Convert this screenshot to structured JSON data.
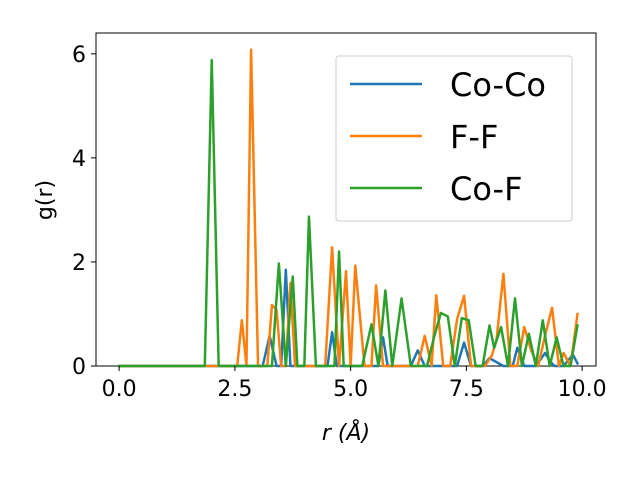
{
  "chart_data": {
    "type": "line",
    "xlabel": "r (Å)",
    "ylabel": "g(r)",
    "xlim": [
      -0.5,
      10.3
    ],
    "ylim": [
      0,
      6.4
    ],
    "xticks": [
      0.0,
      2.5,
      5.0,
      7.5,
      10.0
    ],
    "yticks": [
      0,
      2,
      4,
      6
    ],
    "xtick_labels": [
      "0.0",
      "2.5",
      "5.0",
      "7.5",
      "10.0"
    ],
    "ytick_labels": [
      "0",
      "2",
      "4",
      "6"
    ],
    "grid": false,
    "legend_position": "top-right",
    "series": [
      {
        "name": "Co-Co",
        "color": "#1f77b4",
        "x": [
          0.0,
          3.1,
          3.25,
          3.4,
          3.5,
          3.6,
          3.7,
          4.5,
          4.6,
          4.7,
          5.0,
          5.6,
          5.7,
          5.8,
          6.3,
          6.45,
          6.6,
          7.1,
          7.3,
          7.45,
          7.6,
          7.85,
          8.0,
          8.3,
          8.5,
          8.6,
          8.75,
          9.0,
          9.2,
          9.3,
          9.4,
          9.6,
          9.8,
          9.9
        ],
        "y": [
          0,
          0,
          0.58,
          0.0,
          0.0,
          1.85,
          0.0,
          0.0,
          0.65,
          0.0,
          0.0,
          0.0,
          0.55,
          0.0,
          0.0,
          0.3,
          0.0,
          0.0,
          0.0,
          0.45,
          0.0,
          0.0,
          0.15,
          0.0,
          0.0,
          0.35,
          0.0,
          0.0,
          0.25,
          0.1,
          0.0,
          0.0,
          0.22,
          0.05
        ]
      },
      {
        "name": "F-F",
        "color": "#ff7f0e",
        "x": [
          0.0,
          2.55,
          2.65,
          2.75,
          2.85,
          3.0,
          3.2,
          3.3,
          3.4,
          3.5,
          3.6,
          3.7,
          3.8,
          3.9,
          4.0,
          4.1,
          4.3,
          4.45,
          4.6,
          4.75,
          4.9,
          5.0,
          5.1,
          5.3,
          5.45,
          5.55,
          5.7,
          5.85,
          6.1,
          6.3,
          6.45,
          6.6,
          6.75,
          6.85,
          7.0,
          7.15,
          7.3,
          7.45,
          7.6,
          7.8,
          7.9,
          8.05,
          8.15,
          8.3,
          8.45,
          8.6,
          8.75,
          8.9,
          9.05,
          9.2,
          9.35,
          9.5,
          9.6,
          9.75,
          9.9
        ],
        "y": [
          0,
          0,
          0.88,
          0.0,
          6.08,
          0.0,
          0.0,
          1.17,
          1.08,
          0.0,
          0.0,
          1.6,
          0.0,
          0.0,
          0.0,
          0.0,
          0.0,
          0.0,
          2.28,
          0.0,
          1.82,
          0.0,
          1.93,
          0.0,
          0.0,
          1.55,
          0.0,
          0.0,
          0.0,
          0.0,
          0.0,
          0.58,
          0.0,
          1.36,
          0.0,
          0.0,
          0.9,
          1.35,
          0.0,
          0.0,
          0.0,
          0.2,
          0.5,
          1.77,
          0.0,
          0.0,
          0.75,
          0.3,
          0.0,
          0.58,
          1.12,
          0.0,
          0.25,
          0.0,
          1.0
        ]
      },
      {
        "name": "Co-F",
        "color": "#2ca02c",
        "x": [
          0.0,
          1.85,
          2.0,
          2.15,
          3.3,
          3.45,
          3.6,
          3.75,
          3.85,
          4.0,
          4.1,
          4.25,
          4.5,
          4.65,
          4.75,
          4.85,
          5.0,
          5.25,
          5.45,
          5.6,
          5.75,
          5.9,
          6.1,
          6.3,
          6.5,
          6.65,
          6.8,
          6.95,
          7.1,
          7.25,
          7.4,
          7.55,
          7.7,
          7.85,
          8.0,
          8.1,
          8.25,
          8.4,
          8.55,
          8.7,
          8.85,
          9.0,
          9.15,
          9.3,
          9.45,
          9.6,
          9.75,
          9.9
        ],
        "y": [
          0,
          0,
          5.88,
          0.0,
          0.0,
          1.97,
          0.0,
          1.72,
          0.0,
          0.0,
          2.87,
          0.0,
          0.0,
          0.0,
          2.2,
          0.0,
          0.0,
          0.0,
          0.8,
          0.0,
          1.45,
          0.0,
          1.3,
          0.0,
          0.0,
          0.0,
          0.55,
          1.02,
          0.95,
          0.0,
          0.92,
          0.88,
          0.0,
          0.0,
          0.78,
          0.35,
          0.75,
          0.0,
          1.3,
          0.0,
          0.62,
          0.0,
          0.88,
          0.0,
          0.55,
          0.0,
          0.0,
          0.78
        ]
      }
    ]
  }
}
